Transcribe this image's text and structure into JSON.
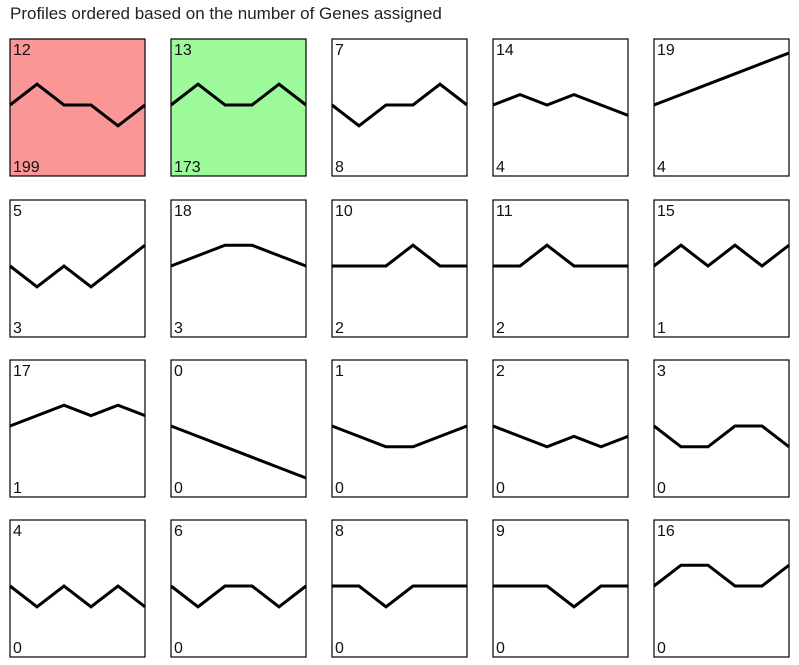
{
  "title": "Profiles ordered based on the number of Genes assigned",
  "colors": {
    "significant_1": "#fa9796",
    "significant_2": "#9cfa9a",
    "default": "#ffffff"
  },
  "chart_data": {
    "type": "line",
    "title": "Profiles ordered based on the number of Genes assigned",
    "xlabel": "",
    "ylabel": "",
    "grid": false,
    "profiles": [
      {
        "id": "12",
        "count": "199",
        "values": [
          0,
          2,
          0,
          0,
          -2,
          0
        ],
        "fill": "significant_1"
      },
      {
        "id": "13",
        "count": "173",
        "values": [
          0,
          2,
          0,
          0,
          2,
          0
        ],
        "fill": "significant_2"
      },
      {
        "id": "7",
        "count": "8",
        "values": [
          0,
          -2,
          0,
          0,
          2,
          0
        ],
        "fill": "default"
      },
      {
        "id": "14",
        "count": "4",
        "values": [
          0,
          1,
          0,
          1,
          0,
          -1
        ],
        "fill": "default"
      },
      {
        "id": "19",
        "count": "4",
        "values": [
          0,
          1,
          2,
          3,
          4,
          5
        ],
        "fill": "default"
      },
      {
        "id": "5",
        "count": "3",
        "values": [
          0,
          -2,
          0,
          -2,
          0,
          2
        ],
        "fill": "default"
      },
      {
        "id": "18",
        "count": "3",
        "values": [
          0,
          1,
          2,
          2,
          1,
          0
        ],
        "fill": "default"
      },
      {
        "id": "10",
        "count": "2",
        "values": [
          0,
          0,
          0,
          2,
          0,
          0
        ],
        "fill": "default"
      },
      {
        "id": "11",
        "count": "2",
        "values": [
          0,
          0,
          2,
          0,
          0,
          0
        ],
        "fill": "default"
      },
      {
        "id": "15",
        "count": "1",
        "values": [
          0,
          2,
          0,
          2,
          0,
          2
        ],
        "fill": "default"
      },
      {
        "id": "17",
        "count": "1",
        "values": [
          0,
          1,
          2,
          1,
          2,
          1
        ],
        "fill": "default"
      },
      {
        "id": "0",
        "count": "0",
        "values": [
          0,
          -1,
          -2,
          -3,
          -4,
          -5
        ],
        "fill": "default"
      },
      {
        "id": "1",
        "count": "0",
        "values": [
          0,
          -1,
          -2,
          -2,
          -1,
          0
        ],
        "fill": "default"
      },
      {
        "id": "2",
        "count": "0",
        "values": [
          0,
          -1,
          -2,
          -1,
          -2,
          -1
        ],
        "fill": "default"
      },
      {
        "id": "3",
        "count": "0",
        "values": [
          0,
          -2,
          -2,
          0,
          0,
          -2
        ],
        "fill": "default"
      },
      {
        "id": "4",
        "count": "0",
        "values": [
          0,
          -2,
          0,
          -2,
          0,
          -2
        ],
        "fill": "default"
      },
      {
        "id": "6",
        "count": "0",
        "values": [
          0,
          -2,
          0,
          0,
          -2,
          0
        ],
        "fill": "default"
      },
      {
        "id": "8",
        "count": "0",
        "values": [
          0,
          0,
          -2,
          0,
          0,
          0
        ],
        "fill": "default"
      },
      {
        "id": "9",
        "count": "0",
        "values": [
          0,
          0,
          0,
          -2,
          0,
          0
        ],
        "fill": "default"
      },
      {
        "id": "16",
        "count": "0",
        "values": [
          0,
          2,
          2,
          0,
          0,
          2
        ],
        "fill": "default"
      }
    ]
  }
}
